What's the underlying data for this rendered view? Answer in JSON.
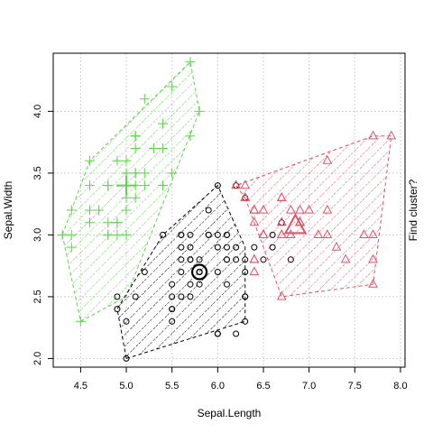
{
  "chart_data": {
    "type": "scatter",
    "title": "",
    "xlabel": "Sepal.Length",
    "ylabel": "Sepal.Width",
    "right_label": "Find cluster?",
    "xlim": [
      4.2,
      8.05
    ],
    "ylim": [
      1.93,
      4.47
    ],
    "xticks": [
      "4.5",
      "5.0",
      "5.5",
      "6.0",
      "6.5",
      "7.0",
      "7.5",
      "8.0"
    ],
    "yticks": [
      "2.0",
      "2.5",
      "3.0",
      "3.5",
      "4.0"
    ],
    "grid": true,
    "series": [
      {
        "marker": "plus",
        "color": "#61D04F",
        "hull": [
          [
            4.3,
            3.0
          ],
          [
            4.5,
            2.3
          ],
          [
            5.0,
            2.5
          ],
          [
            5.8,
            4.0
          ],
          [
            5.7,
            4.4
          ],
          [
            4.6,
            3.6
          ]
        ],
        "centroid": [
          5.0,
          3.4
        ],
        "points": [
          [
            5.1,
            3.5
          ],
          [
            4.9,
            3.0
          ],
          [
            4.7,
            3.2
          ],
          [
            4.6,
            3.1
          ],
          [
            5.0,
            3.6
          ],
          [
            5.4,
            3.9
          ],
          [
            4.6,
            3.4
          ],
          [
            5.0,
            3.4
          ],
          [
            4.4,
            2.9
          ],
          [
            4.9,
            3.1
          ],
          [
            5.4,
            3.7
          ],
          [
            4.8,
            3.4
          ],
          [
            4.8,
            3.0
          ],
          [
            4.3,
            3.0
          ],
          [
            5.8,
            4.0
          ],
          [
            5.7,
            4.4
          ],
          [
            5.4,
            3.9
          ],
          [
            5.1,
            3.5
          ],
          [
            5.7,
            3.8
          ],
          [
            5.1,
            3.8
          ],
          [
            5.4,
            3.4
          ],
          [
            5.1,
            3.7
          ],
          [
            4.6,
            3.6
          ],
          [
            5.1,
            3.3
          ],
          [
            4.8,
            3.4
          ],
          [
            5.0,
            3.0
          ],
          [
            5.0,
            3.4
          ],
          [
            5.2,
            3.5
          ],
          [
            5.2,
            3.4
          ],
          [
            4.7,
            3.2
          ],
          [
            4.8,
            3.1
          ],
          [
            5.4,
            3.4
          ],
          [
            5.2,
            4.1
          ],
          [
            5.5,
            4.2
          ],
          [
            4.9,
            3.1
          ],
          [
            5.0,
            3.2
          ],
          [
            5.5,
            3.5
          ],
          [
            4.9,
            3.6
          ],
          [
            4.4,
            3.0
          ],
          [
            5.1,
            3.4
          ],
          [
            5.0,
            3.5
          ],
          [
            4.5,
            2.3
          ],
          [
            4.4,
            3.2
          ],
          [
            5.0,
            3.5
          ],
          [
            5.1,
            3.8
          ],
          [
            4.8,
            3.0
          ],
          [
            5.1,
            3.8
          ],
          [
            4.6,
            3.2
          ],
          [
            5.3,
            3.7
          ],
          [
            5.0,
            3.3
          ]
        ]
      },
      {
        "marker": "circle",
        "color": "#000000",
        "hull": [
          [
            5.0,
            2.0
          ],
          [
            6.3,
            2.3
          ],
          [
            6.3,
            2.5
          ],
          [
            6.3,
            2.9
          ],
          [
            6.0,
            3.4
          ],
          [
            5.4,
            3.0
          ],
          [
            4.9,
            2.4
          ]
        ],
        "centroid": [
          5.8,
          2.7
        ],
        "points": [
          [
            5.5,
            2.3
          ],
          [
            6.5,
            2.8
          ],
          [
            5.7,
            2.8
          ],
          [
            6.3,
            3.3
          ],
          [
            4.9,
            2.4
          ],
          [
            6.6,
            2.9
          ],
          [
            5.2,
            2.7
          ],
          [
            5.0,
            2.0
          ],
          [
            5.9,
            3.0
          ],
          [
            6.0,
            2.2
          ],
          [
            6.1,
            2.9
          ],
          [
            5.6,
            2.9
          ],
          [
            6.7,
            3.1
          ],
          [
            5.6,
            3.0
          ],
          [
            5.8,
            2.7
          ],
          [
            6.2,
            2.2
          ],
          [
            5.6,
            2.5
          ],
          [
            5.9,
            3.2
          ],
          [
            6.1,
            2.8
          ],
          [
            6.3,
            2.5
          ],
          [
            6.1,
            2.8
          ],
          [
            6.4,
            2.9
          ],
          [
            6.6,
            3.0
          ],
          [
            6.8,
            2.8
          ],
          [
            6.0,
            2.9
          ],
          [
            5.7,
            2.6
          ],
          [
            5.5,
            2.4
          ],
          [
            5.5,
            2.4
          ],
          [
            5.8,
            2.7
          ],
          [
            6.0,
            2.7
          ],
          [
            5.4,
            3.0
          ],
          [
            6.0,
            3.4
          ],
          [
            6.3,
            2.3
          ],
          [
            5.6,
            3.0
          ],
          [
            5.5,
            2.5
          ],
          [
            5.5,
            2.6
          ],
          [
            6.1,
            3.0
          ],
          [
            5.8,
            2.6
          ],
          [
            5.0,
            2.3
          ],
          [
            5.6,
            2.7
          ],
          [
            5.7,
            3.0
          ],
          [
            5.7,
            2.9
          ],
          [
            6.2,
            2.9
          ],
          [
            5.1,
            2.5
          ],
          [
            5.7,
            2.8
          ],
          [
            5.8,
            2.7
          ],
          [
            4.9,
            2.5
          ],
          [
            5.7,
            2.5
          ],
          [
            5.8,
            2.8
          ],
          [
            6.0,
            2.2
          ],
          [
            5.6,
            2.8
          ],
          [
            6.3,
            2.7
          ],
          [
            6.2,
            2.8
          ],
          [
            6.1,
            3.0
          ],
          [
            6.3,
            2.8
          ],
          [
            6.1,
            2.6
          ],
          [
            6.0,
            3.0
          ],
          [
            5.8,
            2.7
          ],
          [
            6.3,
            2.5
          ],
          [
            5.9,
            3.0
          ],
          [
            6.2,
            3.4
          ]
        ]
      },
      {
        "marker": "triangle",
        "color": "#DF536B",
        "hull": [
          [
            6.3,
            3.3
          ],
          [
            6.7,
            2.5
          ],
          [
            7.7,
            2.6
          ],
          [
            7.9,
            3.8
          ],
          [
            7.7,
            3.8
          ],
          [
            6.2,
            3.4
          ]
        ],
        "centroid": [
          6.85,
          3.07
        ],
        "points": [
          [
            7.0,
            3.2
          ],
          [
            6.4,
            3.2
          ],
          [
            6.9,
            3.1
          ],
          [
            6.3,
            3.3
          ],
          [
            6.7,
            3.0
          ],
          [
            6.9,
            3.1
          ],
          [
            6.7,
            3.1
          ],
          [
            6.3,
            3.3
          ],
          [
            7.1,
            3.0
          ],
          [
            6.5,
            3.0
          ],
          [
            7.6,
            3.0
          ],
          [
            7.3,
            2.9
          ],
          [
            6.7,
            2.5
          ],
          [
            7.2,
            3.6
          ],
          [
            6.5,
            3.2
          ],
          [
            6.4,
            2.7
          ],
          [
            6.8,
            3.0
          ],
          [
            6.4,
            3.2
          ],
          [
            6.5,
            3.0
          ],
          [
            7.7,
            3.8
          ],
          [
            7.7,
            2.6
          ],
          [
            6.9,
            3.2
          ],
          [
            7.7,
            2.8
          ],
          [
            6.7,
            3.3
          ],
          [
            7.2,
            3.2
          ],
          [
            6.4,
            2.8
          ],
          [
            7.2,
            3.0
          ],
          [
            7.4,
            2.8
          ],
          [
            7.9,
            3.8
          ],
          [
            6.4,
            2.8
          ],
          [
            7.7,
            3.0
          ],
          [
            6.3,
            3.4
          ],
          [
            6.4,
            3.1
          ],
          [
            6.9,
            3.1
          ],
          [
            6.7,
            3.1
          ],
          [
            6.9,
            3.1
          ],
          [
            6.8,
            3.2
          ],
          [
            6.7,
            3.3
          ],
          [
            6.7,
            3.0
          ],
          [
            6.5,
            3.0
          ],
          [
            6.2,
            3.4
          ]
        ]
      }
    ]
  }
}
